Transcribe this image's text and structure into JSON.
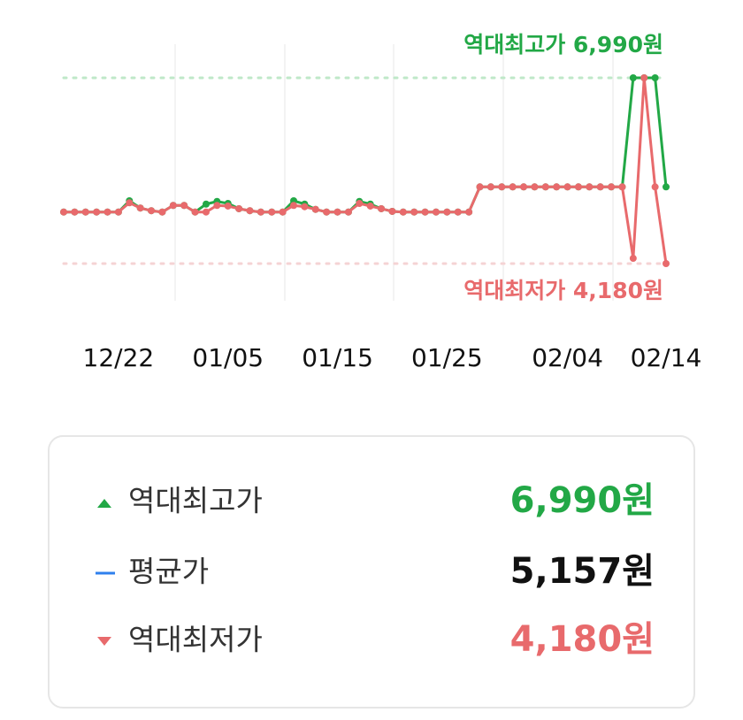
{
  "chart_data": {
    "type": "line",
    "categories": [
      null,
      null,
      null,
      null,
      null,
      "12/22",
      null,
      null,
      null,
      null,
      null,
      null,
      null,
      null,
      null,
      "01/05",
      null,
      null,
      null,
      null,
      null,
      null,
      null,
      null,
      null,
      "01/15",
      null,
      null,
      null,
      null,
      null,
      null,
      null,
      null,
      null,
      "01/25",
      null,
      null,
      null,
      null,
      null,
      null,
      null,
      null,
      null,
      null,
      "02/04",
      null,
      null,
      null,
      null,
      null,
      null,
      null,
      null,
      "02/14"
    ],
    "series": [
      {
        "name": "역대최고가",
        "color": "#22a846",
        "values": [
          4960,
          4960,
          4960,
          4960,
          4960,
          4960,
          5130,
          5020,
          4980,
          4960,
          5060,
          5060,
          4960,
          5080,
          5120,
          5090,
          5010,
          4980,
          4960,
          4960,
          4960,
          5130,
          5080,
          5000,
          4960,
          4960,
          4960,
          5120,
          5080,
          5010,
          4970,
          4960,
          4960,
          4960,
          4960,
          4960,
          4960,
          4960,
          5340,
          5340,
          5340,
          5340,
          5340,
          5340,
          5340,
          5340,
          5340,
          5340,
          5340,
          5340,
          5340,
          5340,
          6990,
          6990,
          6990,
          5340
        ]
      },
      {
        "name": "역대최저가",
        "color": "#e86a6c",
        "values": [
          4960,
          4960,
          4960,
          4960,
          4960,
          4960,
          5100,
          5020,
          4980,
          4960,
          5060,
          5060,
          4960,
          4960,
          5060,
          5050,
          5010,
          4980,
          4960,
          4960,
          4960,
          5060,
          5040,
          5000,
          4960,
          4960,
          4960,
          5090,
          5050,
          5010,
          4970,
          4960,
          4960,
          4960,
          4960,
          4960,
          4960,
          4960,
          5340,
          5340,
          5340,
          5340,
          5340,
          5340,
          5340,
          5340,
          5340,
          5340,
          5340,
          5340,
          5340,
          5340,
          4260,
          6990,
          5340,
          4180
        ]
      }
    ],
    "ylim": [
      4180,
      6990
    ],
    "reference_lines": [
      {
        "value": 6990,
        "color": "#bfe8c8"
      },
      {
        "value": 4180,
        "color": "#f5d3d4"
      }
    ],
    "annotations": [
      {
        "text": "역대최고가 6,990원",
        "color": "#22a846"
      },
      {
        "text": "역대최저가 4,180원",
        "color": "#e86a6c"
      }
    ]
  },
  "summary": [
    {
      "label": "역대최고가",
      "value": "6,990원",
      "color": "#22a846",
      "icon_color": "#22a846"
    },
    {
      "label": "평균가",
      "value": "5,157원",
      "color": "#111111",
      "icon_color": "#2f80ed"
    },
    {
      "label": "역대최저가",
      "value": "4,180원",
      "color": "#e86a6c",
      "icon_color": "#e86a6c"
    }
  ]
}
